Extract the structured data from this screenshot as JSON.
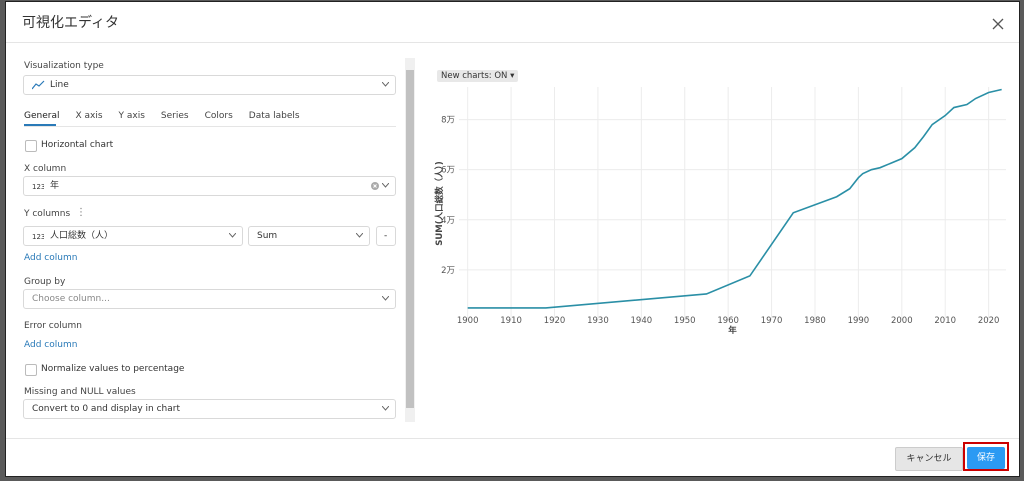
{
  "dialog": {
    "title": "可視化エディタ"
  },
  "form": {
    "visualization_type": {
      "label": "Visualization type",
      "value": "Line"
    },
    "tabs": [
      "General",
      "X axis",
      "Y axis",
      "Series",
      "Colors",
      "Data labels"
    ],
    "horizontal_chart": "Horizontal chart",
    "x_column": {
      "label": "X column",
      "value": "年"
    },
    "y_columns": {
      "label": "Y columns",
      "column": "人口総数（人）",
      "aggregation": "Sum",
      "remove": "-",
      "add": "Add column"
    },
    "group_by": {
      "label": "Group by",
      "placeholder": "Choose column..."
    },
    "error_column": {
      "label": "Error column",
      "add": "Add column"
    },
    "normalize": "Normalize values to percentage",
    "missing": {
      "label": "Missing and NULL values",
      "value": "Convert to 0 and display in chart"
    }
  },
  "chart_toggle": "New charts: ON",
  "chart_data": {
    "type": "line",
    "x_label": "年",
    "y_label": "SUM(人口総数（人）)",
    "color": "#2a8fa6",
    "grid": true,
    "x": [
      1900,
      1918,
      1955,
      1965,
      1975,
      1985,
      1988,
      1990,
      1991,
      1993,
      1995,
      2000,
      2003,
      2005,
      2007,
      2010,
      2012,
      2015,
      2017,
      2020,
      2023
    ],
    "values": [
      4800,
      4800,
      10400,
      17600,
      42800,
      49200,
      52400,
      56800,
      58400,
      60000,
      60800,
      64400,
      68800,
      73200,
      78000,
      81600,
      84800,
      86000,
      88400,
      90800,
      92000
    ],
    "xlim": [
      1898,
      2024
    ],
    "xticks": [
      1900,
      1910,
      1920,
      1930,
      1940,
      1950,
      1960,
      1970,
      1980,
      1990,
      2000,
      2010,
      2020
    ],
    "ylim": [
      0,
      93000
    ],
    "yticks": [
      {
        "value": 20000,
        "label": "2万"
      },
      {
        "value": 40000,
        "label": "4万"
      },
      {
        "value": 60000,
        "label": "6万"
      },
      {
        "value": 80000,
        "label": "8万"
      }
    ]
  },
  "footer": {
    "cancel": "キャンセル",
    "save": "保存"
  }
}
